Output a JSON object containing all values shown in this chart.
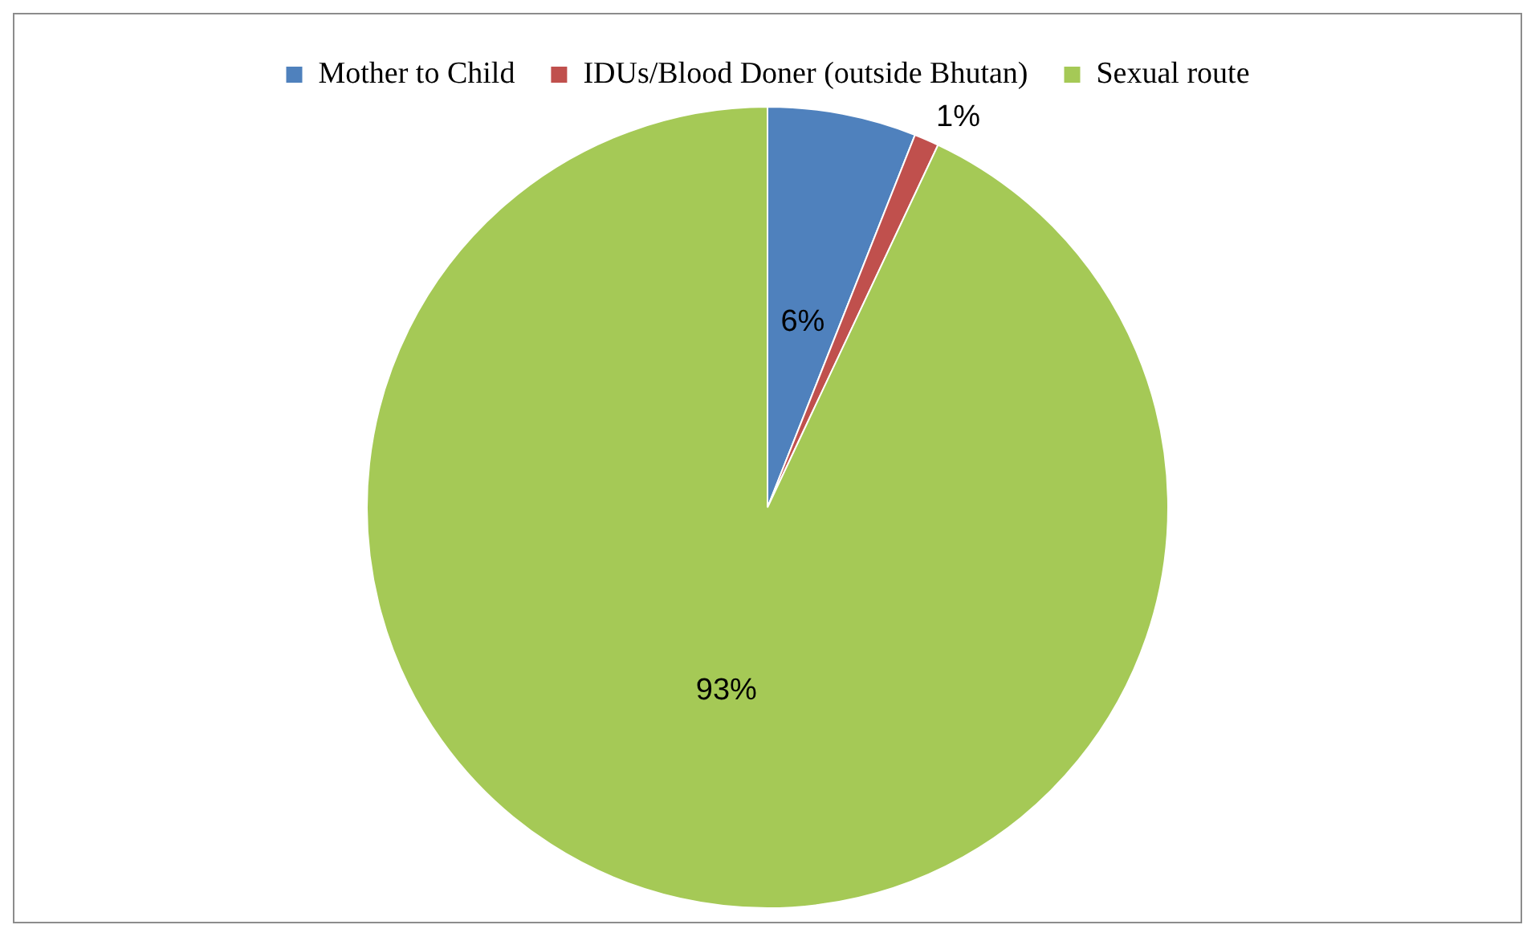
{
  "chart_data": {
    "type": "pie",
    "categories": [
      "Mother to Child",
      "IDUs/Blood Doner (outside Bhutan)",
      "Sexual route"
    ],
    "values": [
      6,
      1,
      93
    ],
    "colors": [
      "#4f81bd",
      "#c0504d",
      "#a5c956"
    ],
    "value_labels": [
      "6%",
      "1%",
      "93%"
    ],
    "legend": "top"
  }
}
